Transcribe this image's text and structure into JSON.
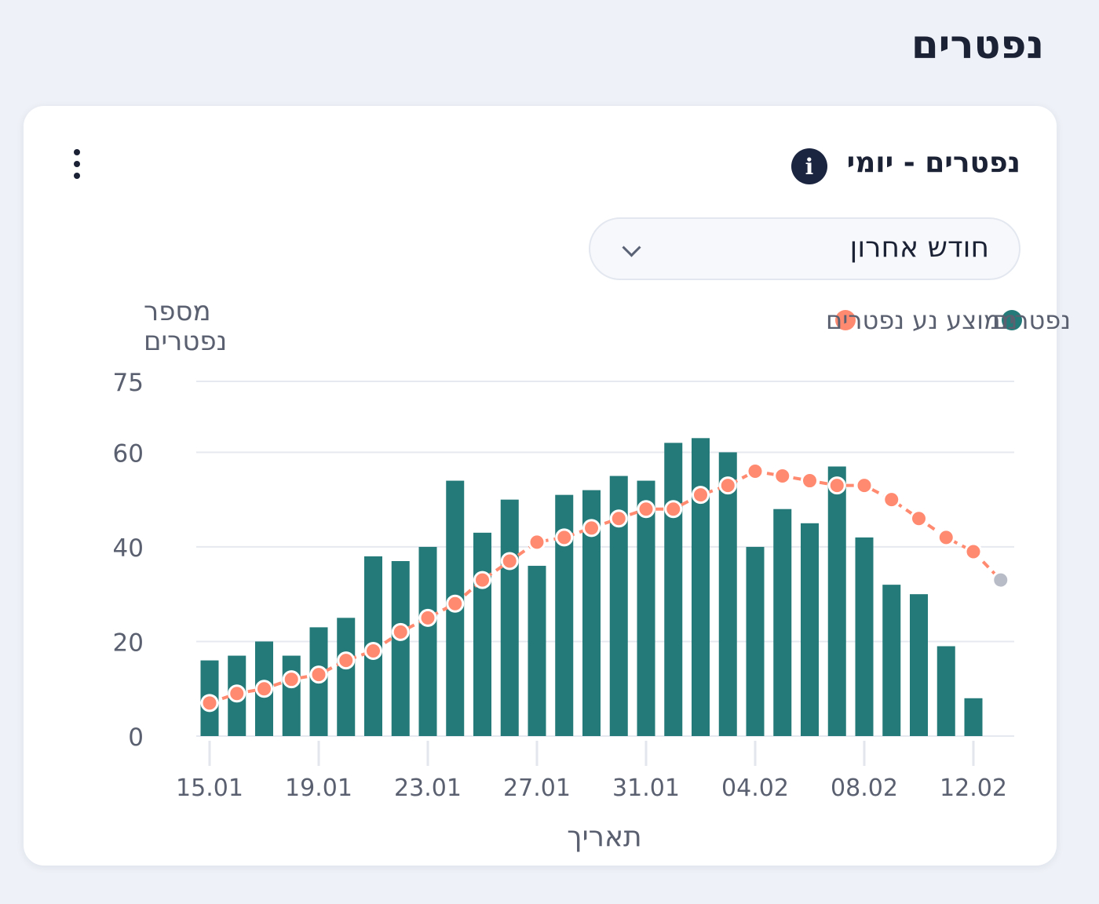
{
  "section": {
    "title": "נפטרים"
  },
  "card": {
    "title": "נפטרים - יומי",
    "info_icon": "info-icon",
    "menu_icon": "kebab-menu-icon",
    "range_select": {
      "value": "חודש אחרון",
      "icon": "chevron-down-icon"
    }
  },
  "chart_data": {
    "type": "bar",
    "x": [
      "15.01",
      "16.01",
      "17.01",
      "18.01",
      "19.01",
      "20.01",
      "21.01",
      "22.01",
      "23.01",
      "24.01",
      "25.01",
      "26.01",
      "27.01",
      "28.01",
      "29.01",
      "30.01",
      "31.01",
      "01.02",
      "02.02",
      "03.02",
      "04.02",
      "05.02",
      "06.02",
      "07.02",
      "08.02",
      "09.02",
      "10.02",
      "11.02",
      "12.02",
      "13.02"
    ],
    "x_ticks": [
      "15.01",
      "19.01",
      "23.01",
      "27.01",
      "31.01",
      "04.02",
      "08.02",
      "12.02"
    ],
    "series": [
      {
        "name": "נפטרים",
        "type": "bar",
        "color": "#237a78",
        "values": [
          16,
          17,
          20,
          17,
          23,
          25,
          38,
          37,
          40,
          54,
          43,
          50,
          36,
          51,
          52,
          55,
          54,
          62,
          63,
          60,
          40,
          48,
          45,
          57,
          42,
          32,
          30,
          19,
          8,
          null
        ]
      },
      {
        "name": "ממוצע נע נפטרים",
        "type": "line",
        "color": "#ff8a70",
        "values": [
          7,
          9,
          10,
          12,
          13,
          16,
          18,
          22,
          25,
          28,
          33,
          37,
          41,
          42,
          44,
          46,
          48,
          48,
          51,
          53,
          56,
          55,
          54,
          53,
          53,
          50,
          46,
          42,
          39,
          33
        ]
      }
    ],
    "ylabel": "מספר נפטרים",
    "xlabel": "תאריך",
    "y_ticks": [
      0,
      20,
      40,
      60,
      75
    ],
    "ylim": [
      0,
      75
    ],
    "grid": true,
    "legend_position": "top-right",
    "last_point_color": "#b8bcc6"
  }
}
